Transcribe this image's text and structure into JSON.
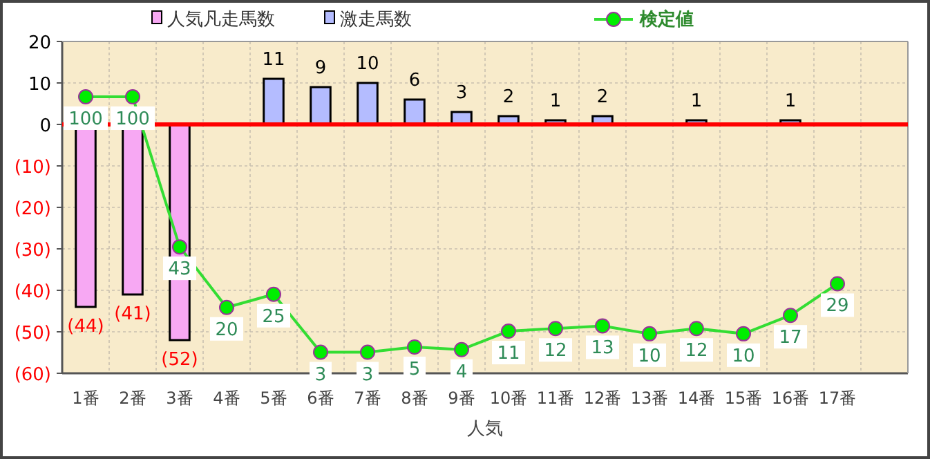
{
  "chart_data": {
    "type": "bar",
    "xlabel": "人気",
    "categories": [
      "1番",
      "2番",
      "3番",
      "4番",
      "5番",
      "6番",
      "7番",
      "8番",
      "9番",
      "10番",
      "11番",
      "12番",
      "13番",
      "14番",
      "15番",
      "16番",
      "17番",
      null
    ],
    "ylim": [
      -60,
      20
    ],
    "yticks": [
      {
        "value": -60,
        "label": "(60)"
      },
      {
        "value": -50,
        "label": "(50)"
      },
      {
        "value": -40,
        "label": "(40)"
      },
      {
        "value": -30,
        "label": "(30)"
      },
      {
        "value": -20,
        "label": "(20)"
      },
      {
        "value": -10,
        "label": "(10)"
      },
      0,
      10,
      20
    ],
    "y2lim": [
      -5,
      121
    ],
    "tick_labels": [
      "x",
      "y"
    ],
    "grid": true,
    "legend": "top",
    "ref_lines": [
      {
        "axis": "y",
        "value": 0,
        "color": "#ff0000"
      }
    ],
    "series": [
      {
        "name": "人気凡走馬数",
        "color": "#f7a8f3",
        "values": [
          -44,
          -41,
          -52,
          null,
          null,
          null,
          null,
          null,
          null,
          null,
          null,
          null,
          null,
          null,
          null,
          null,
          null,
          null
        ],
        "value_labels": [
          "(44)",
          "(41)",
          "(52)",
          null,
          null,
          null,
          null,
          null,
          null,
          null,
          null,
          null,
          null,
          null,
          null,
          null,
          null,
          null
        ]
      },
      {
        "name": "激走馬数",
        "color": "#b4bcff",
        "values": [
          null,
          null,
          null,
          null,
          11,
          9,
          10,
          6,
          3,
          2,
          1,
          2,
          null,
          1,
          null,
          1,
          null,
          null
        ],
        "value_labels": [
          null,
          null,
          null,
          null,
          "11",
          "9",
          "10",
          "6",
          "3",
          "2",
          "1",
          "2",
          null,
          "1",
          null,
          "1",
          null,
          null
        ]
      },
      {
        "name": "検定値",
        "type": "line",
        "axis": "y2",
        "color": "#33dd33",
        "marker": "circle",
        "values": [
          100,
          100,
          43,
          20,
          25,
          3,
          3,
          5,
          4,
          11,
          12,
          13,
          10,
          12,
          10,
          17,
          29,
          null
        ],
        "value_labels": [
          "100",
          "100",
          "43",
          "20",
          "25",
          "3",
          "3",
          "5",
          "4",
          "11",
          "12",
          "13",
          "10",
          "12",
          "10",
          "17",
          "29",
          null
        ]
      }
    ]
  }
}
